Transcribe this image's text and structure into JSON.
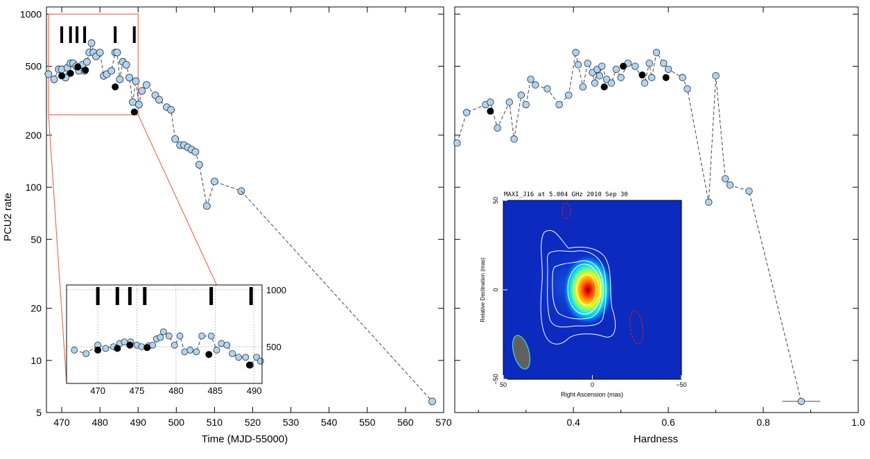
{
  "colors": {
    "marker_fill": "#b3d3ea",
    "marker_edge": "#1e3048",
    "flare_marker": "#000000",
    "connector": "#444444",
    "zoom_frame": "#e8705a",
    "contour": "#ffffff",
    "beam_fill": "#606060",
    "beam_edge": "#40e0d0",
    "negative_contour": "#cc2222"
  },
  "chart_data": [
    {
      "type": "scatter",
      "panel": "light curve",
      "xlabel": "Time (MJD-55000)",
      "ylabel": "PCU2 rate",
      "xlim": [
        466,
        570
      ],
      "ylim": [
        5,
        1100
      ],
      "yscale": "log",
      "xticks": [
        470,
        480,
        490,
        500,
        510,
        520,
        530,
        540,
        550,
        560,
        570
      ],
      "yticks": [
        5,
        10,
        20,
        50,
        100,
        200,
        500,
        1000
      ],
      "flare_markers_x": [
        470,
        472.3,
        474,
        476,
        484,
        489
      ],
      "series": [
        {
          "x": [
            466.5,
            468,
            469.2,
            470,
            471,
            471.5,
            472.3,
            473,
            473.8,
            474.5,
            475.5,
            476,
            476.6,
            477.2,
            477.8,
            478.3,
            479,
            480,
            481,
            481.8,
            483,
            484,
            484.5,
            485.2,
            486,
            486.9,
            487.7,
            488.6,
            489.4,
            490.2,
            491,
            492.2,
            494.5,
            495.5,
            497.5,
            498.6,
            499.7,
            501,
            502,
            503,
            504,
            505,
            506,
            508,
            510,
            517
          ],
          "y": [
            450,
            420,
            480,
            480,
            430,
            490,
            520,
            520,
            500,
            470,
            510,
            470,
            530,
            600,
            680,
            600,
            570,
            600,
            440,
            450,
            470,
            600,
            600,
            420,
            530,
            510,
            430,
            310,
            410,
            300,
            360,
            390,
            340,
            320,
            290,
            280,
            190,
            175,
            175,
            170,
            165,
            160,
            135,
            78,
            108,
            95
          ]
        },
        {
          "x": [
            567
          ],
          "y": [
            5.8
          ]
        }
      ],
      "flare_points": {
        "x": [
          470,
          472.3,
          474.2,
          476.2,
          484,
          489
        ],
        "y": [
          440,
          455,
          495,
          475,
          380,
          272
        ]
      }
    },
    {
      "type": "scatter",
      "panel": "zoom inset",
      "xlim": [
        466,
        491
      ],
      "ylim": [
        320,
        1060
      ],
      "yscale": "log",
      "xticks": [
        470,
        475,
        480,
        485,
        490
      ],
      "yticks": [
        500,
        1000
      ],
      "flare_markers_x": [
        470,
        472.5,
        474.1,
        476,
        484.5,
        489.6
      ],
      "series": [
        {
          "x": [
            467,
            468.5,
            470,
            471,
            472,
            472.8,
            473.4,
            474.2,
            475,
            475.6,
            476.5,
            477,
            477.5,
            478,
            478.4,
            479.1,
            479.8,
            480.5,
            481.1,
            481.8,
            482.6,
            483.3,
            484.5,
            485.2,
            485.8,
            486.5,
            487.2,
            488,
            488.9,
            489.5,
            490.3,
            490.8
          ],
          "y": [
            480,
            460,
            510,
            490,
            500,
            520,
            530,
            530,
            510,
            500,
            505,
            510,
            550,
            560,
            600,
            570,
            510,
            570,
            470,
            480,
            470,
            570,
            570,
            480,
            520,
            510,
            460,
            440,
            440,
            400,
            440,
            420
          ]
        }
      ],
      "flare_points": {
        "x": [
          470,
          472.5,
          474.1,
          476.3,
          484.2,
          489.4
        ],
        "y": [
          480,
          490,
          510,
          495,
          455,
          400
        ]
      }
    },
    {
      "type": "scatter",
      "panel": "hardness-intensity diagram",
      "xlabel": "Hardness",
      "xlim": [
        0.15,
        1.0
      ],
      "ylim": [
        5,
        1100
      ],
      "yscale": "log",
      "xticks": [
        0.4,
        0.6,
        0.8,
        1.0
      ],
      "xticklabels": [
        "0.4",
        "0.6",
        "0.8",
        "1.0"
      ],
      "series": [
        {
          "x": [
            0.155,
            0.175,
            0.215,
            0.225,
            0.24,
            0.265,
            0.275,
            0.29,
            0.3,
            0.31,
            0.32,
            0.345,
            0.37,
            0.39,
            0.405,
            0.41,
            0.42,
            0.43,
            0.44,
            0.445,
            0.45,
            0.455,
            0.46,
            0.47,
            0.48,
            0.49,
            0.5,
            0.515,
            0.53,
            0.55,
            0.56,
            0.565,
            0.575,
            0.59,
            0.6,
            0.63,
            0.64,
            0.685,
            0.7,
            0.72,
            0.73,
            0.77,
            0.88
          ],
          "y": [
            180,
            270,
            300,
            310,
            220,
            310,
            190,
            340,
            300,
            420,
            390,
            370,
            300,
            340,
            600,
            510,
            380,
            520,
            460,
            400,
            480,
            440,
            500,
            420,
            400,
            480,
            430,
            520,
            500,
            400,
            520,
            430,
            600,
            520,
            480,
            430,
            370,
            82,
            440,
            112,
            103,
            95,
            5.8
          ]
        }
      ],
      "flare_points": {
        "x": [
          0.225,
          0.465,
          0.505,
          0.545,
          0.595
        ],
        "y": [
          275,
          380,
          500,
          445,
          430
        ]
      },
      "error_bar_x": [
        0.84,
        0.92
      ],
      "error_bar_y": 5.8
    },
    {
      "type": "heatmap",
      "panel": "radio image inset",
      "title": "MAXI_J16 at 5.004 GHz 2010 Sep 30",
      "xlabel": "Right Ascension (mas)",
      "ylabel": "Relative Declination (mas)",
      "xlim": [
        50,
        -50
      ],
      "ylim": [
        -50,
        50
      ],
      "xticks": [
        50,
        0,
        -50
      ],
      "xticklabels": [
        "50",
        "0",
        "−50"
      ],
      "yticks": [
        50,
        0,
        -50
      ],
      "yticklabels": [
        "50",
        "0",
        "−50"
      ]
    }
  ]
}
